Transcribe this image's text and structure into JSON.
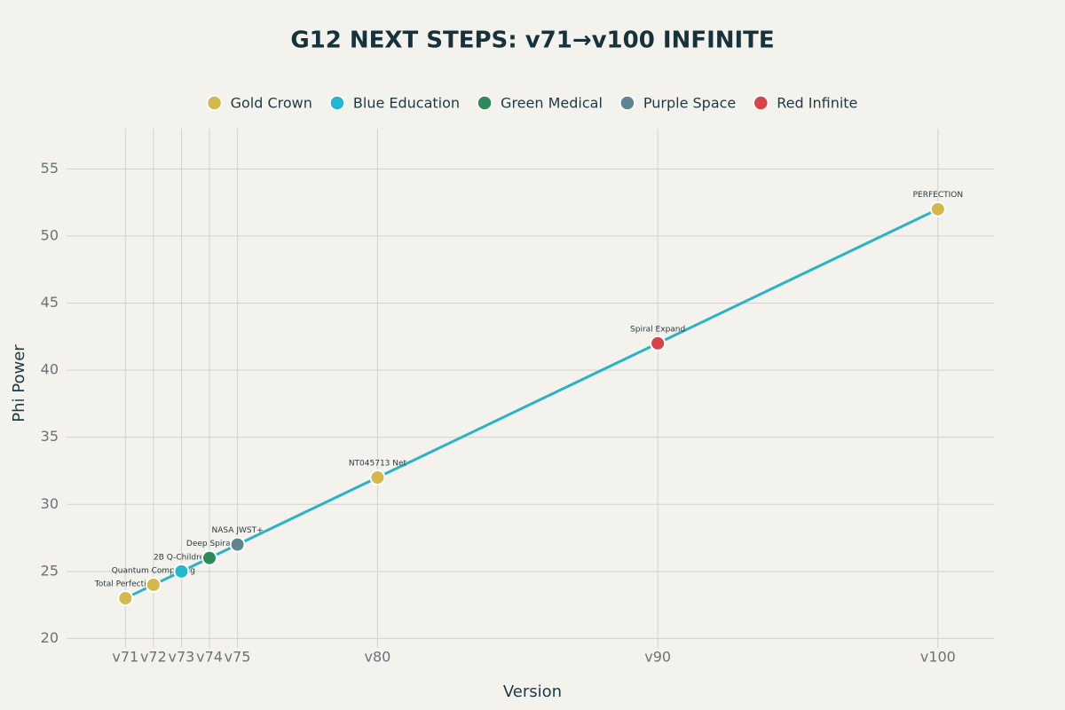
{
  "chart_data": {
    "type": "scatter",
    "title": "G12 NEXT STEPS: v71→v100 INFINITE",
    "x_label": "Version",
    "y_label": "Phi Power",
    "x": [
      71,
      72,
      73,
      74,
      75,
      80,
      90,
      100
    ],
    "values": [
      23,
      24,
      25,
      26,
      27,
      32,
      42,
      52
    ],
    "point_labels": [
      "Total Perfection",
      "Quantum Computing",
      "2B Q-Children",
      "Deep Spiral",
      "NASA JWST+",
      "NT045713 Net",
      "Spiral Expand",
      "PERFECTION"
    ],
    "point_colors": [
      "#d3b84c",
      "#d3b84c",
      "#22b6cf",
      "#2d8a5a",
      "#5f8593",
      "#d3b84c",
      "#d9434a",
      "#d3b84c"
    ],
    "line_color": "#2ab3c6",
    "legend": [
      {
        "name": "Gold Crown",
        "color": "#d3b84c"
      },
      {
        "name": "Blue Education",
        "color": "#22b6cf"
      },
      {
        "name": "Green Medical",
        "color": "#2d8a5a"
      },
      {
        "name": "Purple Space",
        "color": "#5f8593"
      },
      {
        "name": "Red Infinite",
        "color": "#d9434a"
      }
    ],
    "xlim": [
      68.9,
      102
    ],
    "ylim": [
      19.3,
      58
    ],
    "xticks": [
      {
        "value": 71,
        "label": "v71"
      },
      {
        "value": 72,
        "label": "v72"
      },
      {
        "value": 73,
        "label": "v73"
      },
      {
        "value": 74,
        "label": "v74"
      },
      {
        "value": 75,
        "label": "v75"
      },
      {
        "value": 80,
        "label": "v80"
      },
      {
        "value": 90,
        "label": "v90"
      },
      {
        "value": 100,
        "label": "v100"
      }
    ],
    "yticks": [
      20,
      25,
      30,
      35,
      40,
      45,
      50,
      55
    ],
    "grid": true
  }
}
